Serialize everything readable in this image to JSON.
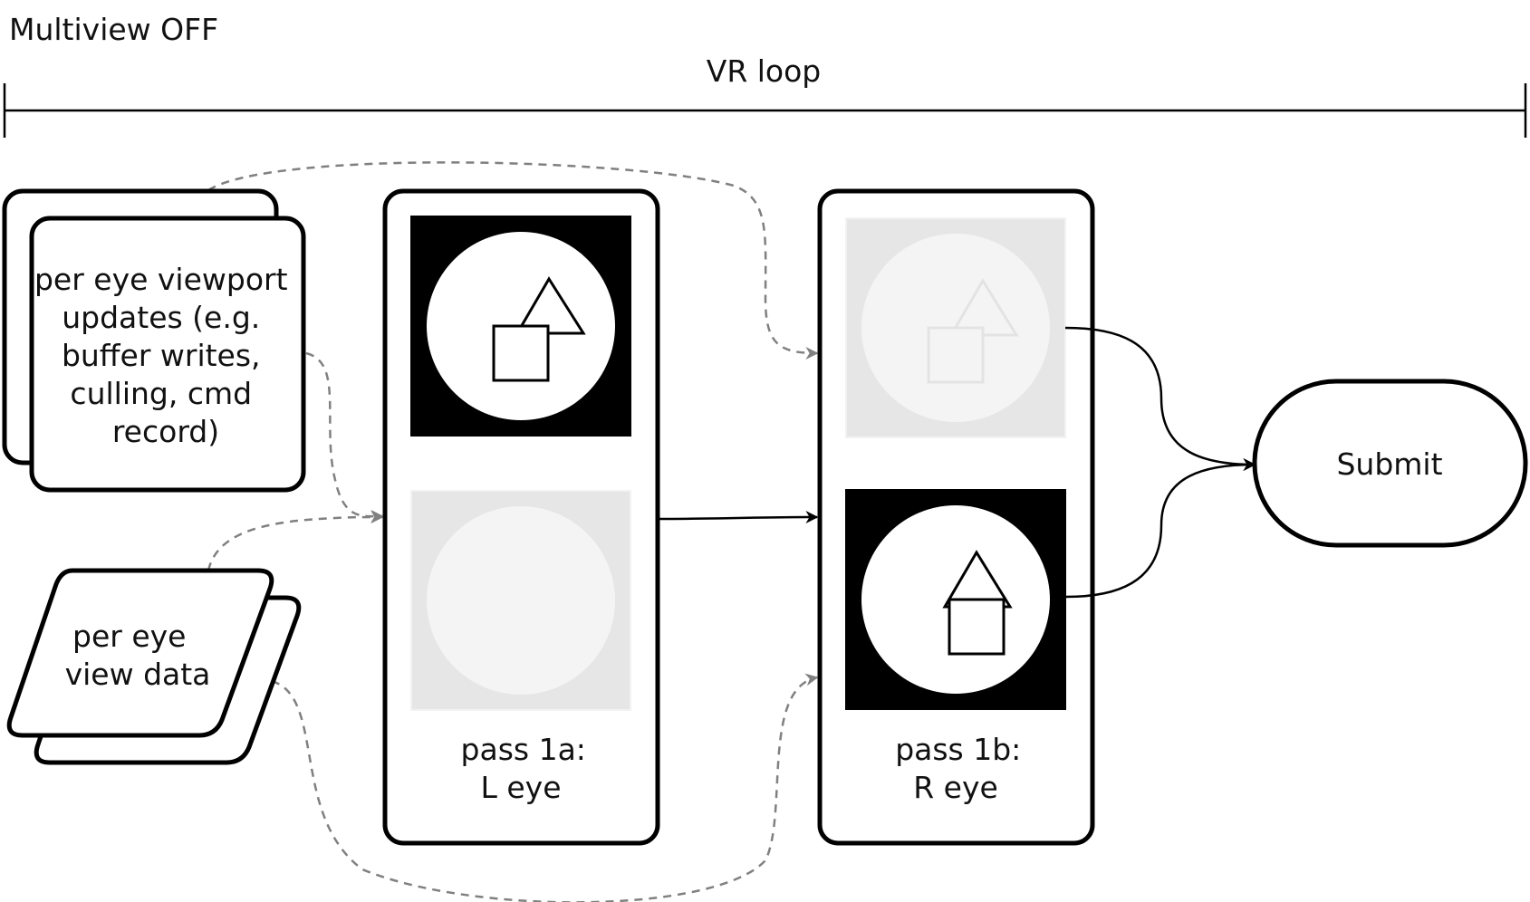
{
  "mode_label": "Multiview OFF",
  "loop": {
    "label": "VR loop"
  },
  "inputs": {
    "viewport_updates": [
      "per eye viewport",
      "updates (e.g.",
      "buffer writes,",
      "culling, cmd",
      "record)"
    ],
    "view_data": [
      "per eye",
      "view data"
    ]
  },
  "passes": [
    {
      "title": "pass 1a:",
      "subtitle": "L eye",
      "rendered_view": "top"
    },
    {
      "title": "pass 1b:",
      "subtitle": "R eye",
      "rendered_view": "bottom"
    }
  ],
  "output": {
    "label": "Submit"
  },
  "colors": {
    "stroke": "#000000",
    "active_fill": "#000000",
    "inactive_fill": "#e6e6e6",
    "dashed_arrow": "#808080"
  },
  "icons": [
    "triangle-shape",
    "square-shape",
    "circle-lens"
  ]
}
